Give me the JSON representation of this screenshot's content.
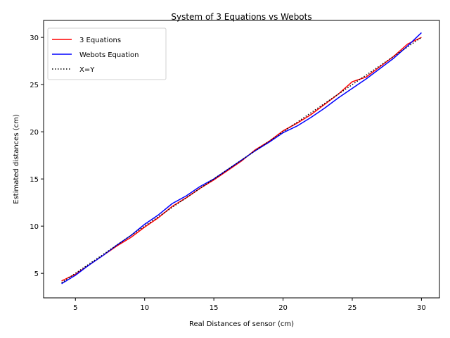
{
  "chart_data": {
    "type": "line",
    "title": "System of 3 Equations vs Webots",
    "xlabel": "Real Distances of sensor (cm)",
    "ylabel": "Estimated distances (cm)",
    "xlim": [
      2.7,
      31.3
    ],
    "ylim": [
      2.4,
      31.8
    ],
    "xticks": [
      5,
      10,
      15,
      20,
      25,
      30
    ],
    "yticks": [
      5,
      10,
      15,
      20,
      25,
      30
    ],
    "grid": false,
    "legend_position": "top-left",
    "series": [
      {
        "name": "3 Equations",
        "color": "#ff0000",
        "style": "solid",
        "x": [
          4,
          5,
          6,
          7,
          8,
          9,
          10,
          11,
          12,
          13,
          14,
          15,
          16,
          17,
          18,
          19,
          20,
          21,
          22,
          23,
          24,
          25,
          26,
          27,
          28,
          29,
          30
        ],
        "y": [
          4.2,
          4.9,
          5.9,
          6.9,
          7.9,
          8.8,
          9.9,
          10.9,
          12.1,
          13.0,
          14.0,
          14.9,
          15.9,
          16.9,
          18.1,
          19.0,
          20.1,
          20.9,
          21.8,
          22.9,
          24.0,
          25.3,
          25.8,
          26.9,
          28.0,
          29.3,
          30.0
        ]
      },
      {
        "name": "Webots Equation",
        "color": "#0000ff",
        "style": "solid",
        "x": [
          4,
          5,
          6,
          7,
          8,
          9,
          10,
          11,
          12,
          13,
          14,
          15,
          16,
          17,
          18,
          19,
          20,
          21,
          22,
          23,
          24,
          25,
          26,
          27,
          28,
          29,
          30
        ],
        "y": [
          3.9,
          4.8,
          5.9,
          6.9,
          8.0,
          9.0,
          10.2,
          11.2,
          12.4,
          13.2,
          14.2,
          15.0,
          16.0,
          17.0,
          18.0,
          18.9,
          19.9,
          20.6,
          21.5,
          22.5,
          23.6,
          24.6,
          25.6,
          26.7,
          27.8,
          29.1,
          30.5
        ]
      },
      {
        "name": "X=Y",
        "color": "#000000",
        "style": "dotted",
        "x": [
          4,
          30
        ],
        "y": [
          4,
          30
        ]
      }
    ]
  }
}
